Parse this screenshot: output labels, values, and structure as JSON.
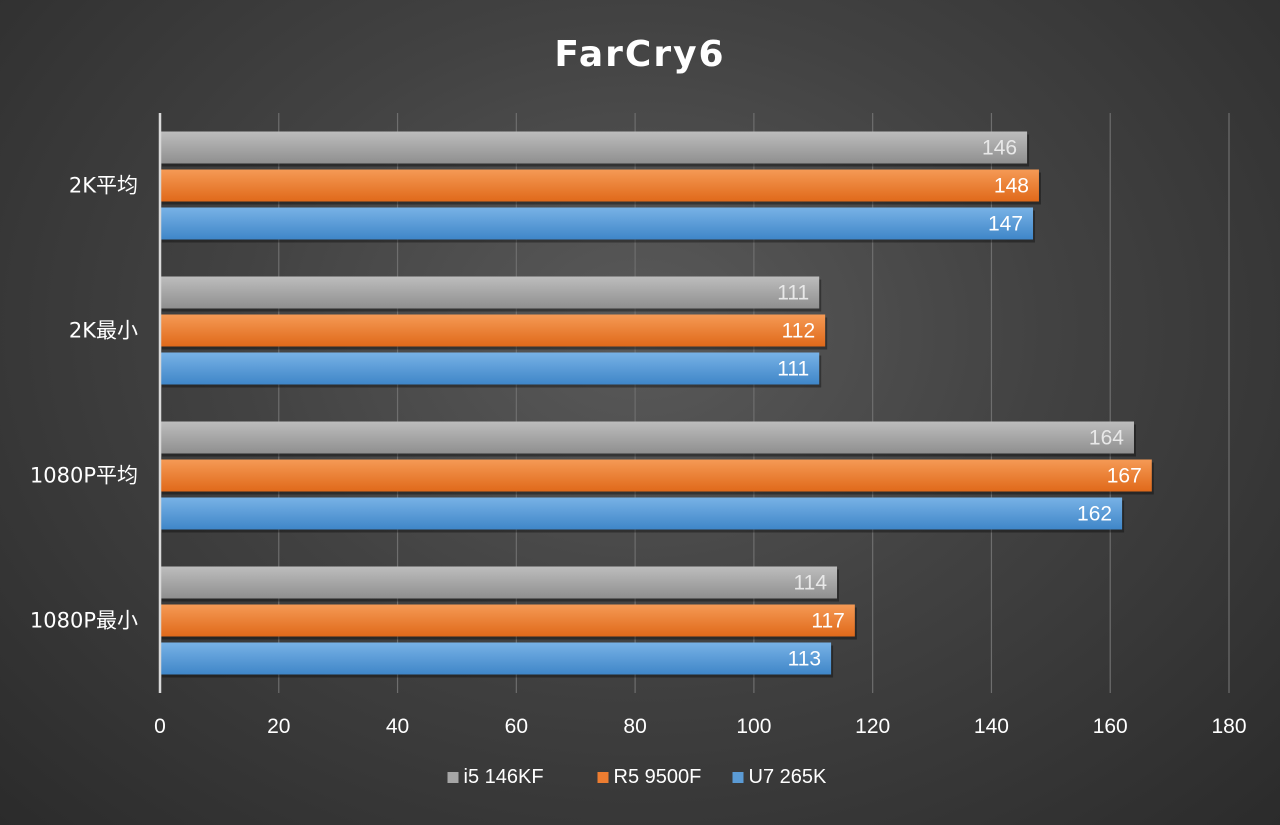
{
  "chart_data": {
    "type": "bar",
    "orientation": "horizontal",
    "title": "FarCry6",
    "categories": [
      "2K平均",
      "2K最小",
      "1080P平均",
      "1080P最小"
    ],
    "series": [
      {
        "name": "i5 146KF",
        "values": [
          146,
          111,
          164,
          114
        ],
        "color": "#a6a6a6",
        "label_color": "#e8e8e8"
      },
      {
        "name": "R5 9500F",
        "values": [
          148,
          112,
          167,
          117
        ],
        "color": "#ed7d31",
        "label_color": "#ffffff"
      },
      {
        "name": "U7 265K",
        "values": [
          147,
          111,
          162,
          113
        ],
        "color": "#5b9bd5",
        "label_color": "#ffffff"
      }
    ],
    "xlim": [
      0,
      180
    ],
    "xticks": [
      "0",
      "20",
      "40",
      "60",
      "80",
      "100",
      "120",
      "140",
      "160",
      "180"
    ],
    "grid": true,
    "legend_position": "bottom"
  }
}
